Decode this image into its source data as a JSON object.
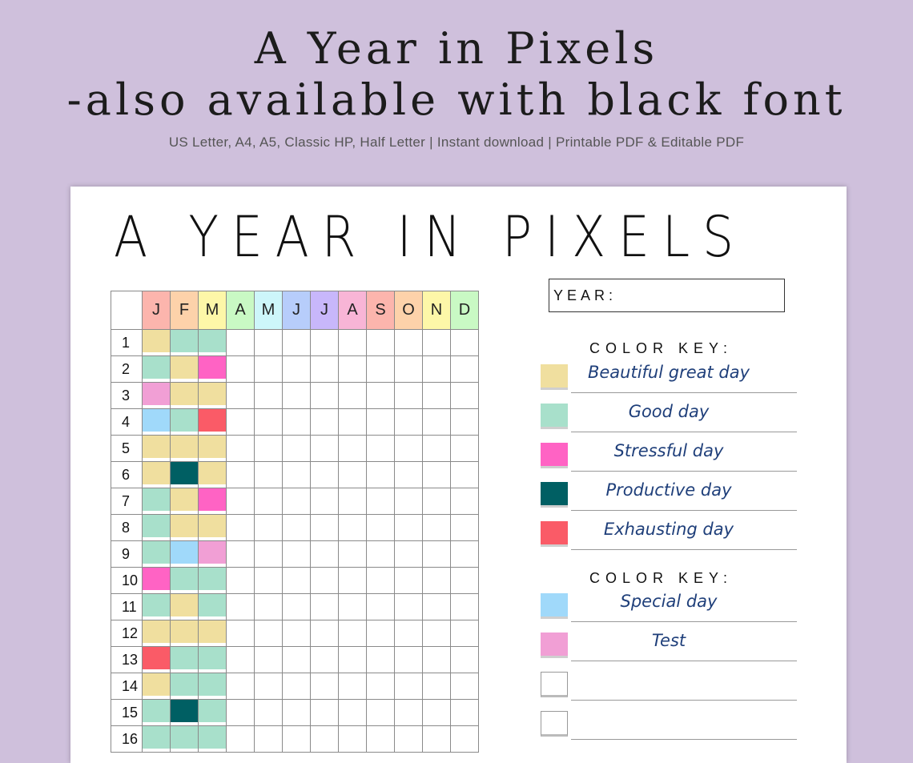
{
  "header": {
    "title_line1": "A Year in Pixels",
    "title_line2": "-also available with black font",
    "subtitle": "US Letter, A4, A5,  Classic HP, Half Letter | Instant download | Printable PDF & Editable PDF"
  },
  "sheet": {
    "title": "A YEAR IN PIXELS",
    "year_label": "YEAR:",
    "months": [
      {
        "label": "J",
        "color": "#fcb5ad"
      },
      {
        "label": "F",
        "color": "#fdd2aa"
      },
      {
        "label": "M",
        "color": "#fdf7a8"
      },
      {
        "label": "A",
        "color": "#c9f9c4"
      },
      {
        "label": "M",
        "color": "#cdf6fa"
      },
      {
        "label": "J",
        "color": "#b7cdfb"
      },
      {
        "label": "J",
        "color": "#c8b7fb"
      },
      {
        "label": "A",
        "color": "#f8b5d6"
      },
      {
        "label": "S",
        "color": "#fcb5ad"
      },
      {
        "label": "O",
        "color": "#fdd2aa"
      },
      {
        "label": "N",
        "color": "#fdf7a8"
      },
      {
        "label": "D",
        "color": "#c9f9c4"
      }
    ],
    "days": [
      "1",
      "2",
      "3",
      "4",
      "5",
      "6",
      "7",
      "8",
      "9",
      "10",
      "11",
      "12",
      "13",
      "14",
      "15",
      "16"
    ],
    "pixels": [
      [
        "beautiful",
        "good",
        "good"
      ],
      [
        "good",
        "beautiful",
        "stressful"
      ],
      [
        "test",
        "beautiful",
        "beautiful"
      ],
      [
        "special",
        "good",
        "exhausting"
      ],
      [
        "beautiful",
        "beautiful",
        "beautiful"
      ],
      [
        "beautiful",
        "productive",
        "beautiful"
      ],
      [
        "good",
        "beautiful",
        "stressful"
      ],
      [
        "good",
        "beautiful",
        "beautiful"
      ],
      [
        "good",
        "special",
        "test"
      ],
      [
        "stressful",
        "good",
        "good"
      ],
      [
        "good",
        "beautiful",
        "good"
      ],
      [
        "beautiful",
        "beautiful",
        "beautiful"
      ],
      [
        "exhausting",
        "good",
        "good"
      ],
      [
        "beautiful",
        "good",
        "good"
      ],
      [
        "good",
        "productive",
        "good"
      ],
      [
        "good",
        "good",
        "good"
      ]
    ],
    "mood_colors": {
      "beautiful": "#f0df9f",
      "good": "#a8e0cb",
      "stressful": "#ff63c4",
      "productive": "#005f63",
      "exhausting": "#fa5b67",
      "special": "#a0d9fa",
      "test": "#f19fd5"
    },
    "color_key_1": {
      "heading": "COLOR KEY:",
      "items": [
        {
          "label": "Beautiful great day",
          "color": "#f0df9f"
        },
        {
          "label": "Good day",
          "color": "#a8e0cb"
        },
        {
          "label": "Stressful day",
          "color": "#ff63c4"
        },
        {
          "label": "Productive day",
          "color": "#005f63"
        },
        {
          "label": "Exhausting day",
          "color": "#fa5b67"
        }
      ]
    },
    "color_key_2": {
      "heading": "COLOR KEY:",
      "items": [
        {
          "label": "Special day",
          "color": "#a0d9fa"
        },
        {
          "label": "Test",
          "color": "#f19fd5"
        },
        {
          "label": "",
          "color": "#ffffff"
        },
        {
          "label": "",
          "color": "#ffffff"
        }
      ]
    }
  }
}
